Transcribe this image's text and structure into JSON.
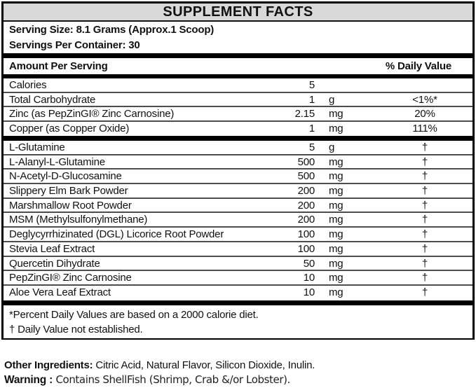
{
  "title": "SUPPLEMENT FACTS",
  "serving": {
    "size": "Serving Size: 8.1 Grams (Approx.1 Scoop)",
    "per_container": "Servings Per Container: 30"
  },
  "columns": {
    "amount_header": "Amount Per Serving",
    "dv_header": "% Daily Value"
  },
  "nutrients": [
    {
      "name": "Calories",
      "amount": "5",
      "unit": "",
      "dv": ""
    },
    {
      "name": "Total Carbohydrate",
      "amount": "1",
      "unit": "g",
      "dv": "<1%*"
    },
    {
      "name": "Zinc (as PepZinGI® Zinc Carnosine)",
      "amount": "2.15",
      "unit": "mg",
      "dv": "20%"
    },
    {
      "name": "Copper (as Copper Oxide)",
      "amount": "1",
      "unit": "mg",
      "dv": "111%"
    }
  ],
  "ingredients": [
    {
      "name": "L-Glutamine",
      "amount": "5",
      "unit": "g",
      "dv": "†"
    },
    {
      "name": "L-Alanyl-L-Glutamine",
      "amount": "500",
      "unit": "mg",
      "dv": "†"
    },
    {
      "name": "N-Acetyl-D-Glucosamine",
      "amount": "500",
      "unit": "mg",
      "dv": "†"
    },
    {
      "name": "Slippery Elm Bark Powder",
      "amount": "200",
      "unit": "mg",
      "dv": "†"
    },
    {
      "name": "Marshmallow Root Powder",
      "amount": "200",
      "unit": "mg",
      "dv": "†"
    },
    {
      "name": "MSM (Methylsulfonylmethane)",
      "amount": "200",
      "unit": "mg",
      "dv": "†"
    },
    {
      "name": "Deglycyrrhizinated (DGL) Licorice Root Powder",
      "amount": "100",
      "unit": "mg",
      "dv": "†"
    },
    {
      "name": "Stevia Leaf Extract",
      "amount": "100",
      "unit": "mg",
      "dv": "†"
    },
    {
      "name": "Quercetin Dihydrate",
      "amount": "50",
      "unit": "mg",
      "dv": "†"
    },
    {
      "name": "PepZinGI® Zinc Carnosine",
      "amount": "10",
      "unit": "mg",
      "dv": "†"
    },
    {
      "name": "Aloe Vera Leaf Extract",
      "amount": "10",
      "unit": "mg",
      "dv": "†"
    }
  ],
  "footnotes": [
    "*Percent Daily Values are based on a 2000 calorie diet.",
    "† Daily Value not established."
  ],
  "other_ingredients": {
    "label": "Other Ingredients:",
    "value": " Citric Acid, Natural Flavor, Silicon Dioxide, Inulin."
  },
  "warning": {
    "label": "Warning :",
    "value": " Contains ShellFish (Shrimp, Crab &/or Lobster)."
  },
  "colors": {
    "title_band_bg": "#d9d9d9",
    "text": "#111111",
    "section_bar": "#000000",
    "row_separator": "#4d4d4d"
  }
}
